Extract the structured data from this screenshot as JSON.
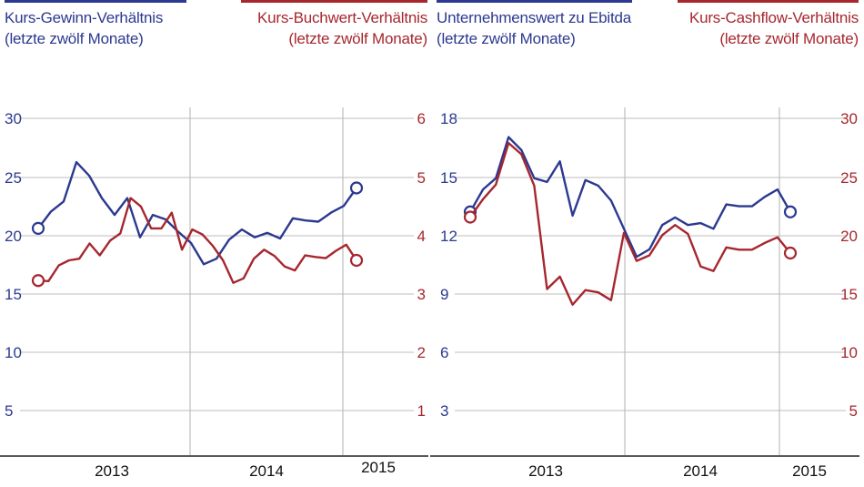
{
  "colors": {
    "blue": "#2b3990",
    "red": "#a6272e",
    "grid": "#bdbdbd",
    "axis": "#222222"
  },
  "legends": [
    {
      "id": "pe",
      "line1": "Kurs-Gewinn-Verhältnis",
      "line2": "(letzte zwölf Monate)",
      "color": "#2b3990"
    },
    {
      "id": "pb",
      "line1": "Kurs-Buchwert-Verhältnis",
      "line2": "(letzte zwölf Monate)",
      "color": "#a6272e"
    },
    {
      "id": "ev",
      "line1": "Unternehmenswert zu Ebitda",
      "line2": "(letzte zwölf Monate)",
      "color": "#2b3990"
    },
    {
      "id": "pcf",
      "line1": "Kurs-Cashflow-Verhältnis",
      "line2": "(letzte zwölf Monate)",
      "color": "#a6272e"
    }
  ],
  "chart_data": [
    {
      "type": "line",
      "x_labels": [
        "2013",
        "2014",
        "2015"
      ],
      "left_axis": {
        "ticks": [
          "30",
          "25",
          "20",
          "15",
          "10",
          "5"
        ],
        "ylim": [
          0,
          30
        ]
      },
      "right_axis": {
        "ticks": [
          "6",
          "5",
          "4",
          "3",
          "2",
          "1"
        ],
        "ylim": [
          0,
          6
        ]
      },
      "grid": true,
      "series": [
        {
          "name": "Kurs-Gewinn-Verhältnis",
          "axis": "left",
          "color": "#2b3990",
          "values": [
            20.2,
            21.7,
            22.6,
            26.1,
            24.9,
            22.9,
            21.4,
            22.9,
            19.4,
            21.4,
            21.0,
            19.9,
            18.9,
            17.0,
            17.5,
            19.2,
            20.1,
            19.4,
            19.8,
            19.3,
            21.1,
            20.9,
            20.8,
            21.6,
            22.2,
            23.8
          ]
        },
        {
          "name": "Kurs-Buchwert-Verhältnis",
          "axis": "right",
          "color": "#a6272e",
          "values": [
            3.11,
            3.1,
            3.38,
            3.47,
            3.5,
            3.77,
            3.56,
            3.82,
            3.95,
            4.58,
            4.43,
            4.04,
            4.04,
            4.32,
            3.66,
            4.02,
            3.93,
            3.73,
            3.47,
            3.07,
            3.15,
            3.5,
            3.66,
            3.55,
            3.36,
            3.29,
            3.56,
            3.53,
            3.51,
            3.64,
            3.75,
            3.47
          ]
        }
      ]
    },
    {
      "type": "line",
      "x_labels": [
        "2013",
        "2014",
        "2015"
      ],
      "left_axis": {
        "ticks": [
          "18",
          "15",
          "12",
          "9",
          "6",
          "3"
        ],
        "ylim": [
          0,
          18
        ]
      },
      "right_axis": {
        "ticks": [
          "30",
          "25",
          "20",
          "15",
          "10",
          "5"
        ],
        "ylim": [
          0,
          30
        ]
      },
      "grid": true,
      "series": [
        {
          "name": "Unternehmenswert zu Ebitda",
          "axis": "left",
          "color": "#2b3990",
          "values": [
            13.0,
            14.2,
            14.8,
            17.0,
            16.3,
            14.8,
            14.6,
            15.7,
            12.8,
            14.7,
            14.4,
            13.6,
            12.1,
            10.6,
            11.0,
            12.3,
            12.7,
            12.3,
            12.4,
            12.1,
            13.4,
            13.3,
            13.3,
            13.8,
            14.2,
            13.0
          ]
        },
        {
          "name": "Kurs-Cashflow-Verhältnis",
          "axis": "right",
          "color": "#a6272e",
          "values": [
            21.2,
            22.8,
            24.1,
            27.8,
            26.8,
            24.0,
            14.8,
            15.9,
            13.4,
            14.7,
            14.5,
            13.8,
            19.8,
            17.3,
            17.8,
            19.6,
            20.5,
            19.7,
            16.8,
            16.4,
            18.5,
            18.3,
            18.3,
            18.9,
            19.4,
            18.0
          ]
        }
      ]
    }
  ]
}
